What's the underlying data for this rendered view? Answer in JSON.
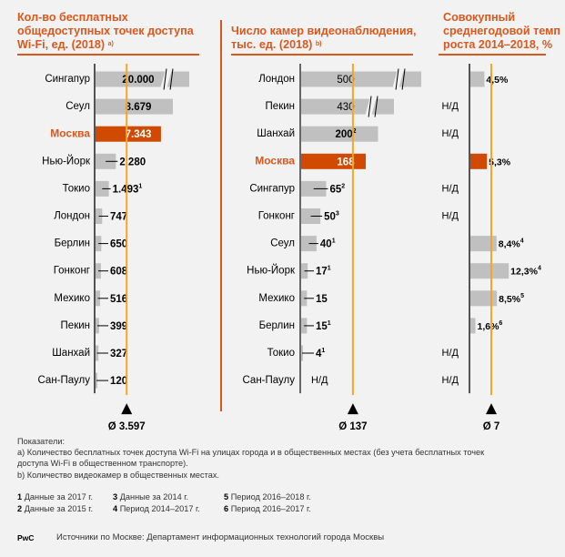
{
  "colors": {
    "accent": "#d9581e",
    "moscow_bar": "#d04a02",
    "bar": "#c0c0c0",
    "avg_line": "#f5a623",
    "axis": "#000000"
  },
  "chart_data": [
    {
      "type": "bar",
      "orientation": "horizontal",
      "title": "Кол-во бесплатных общедоступных точек доступа Wi-Fi, ед. (2018)",
      "title_lines": [
        "Кол-во бесплатных",
        "общедоступных точек доступа",
        "Wi-Fi, ед. (2018)"
      ],
      "title_note": "a)",
      "categories": [
        "Сингапур",
        "Сеул",
        "Москва",
        "Нью-Йорк",
        "Токио",
        "Лондон",
        "Берлин",
        "Гонконг",
        "Мехико",
        "Пекин",
        "Шанхай",
        "Сан-Паулу"
      ],
      "values": [
        20000,
        8679,
        7343,
        2280,
        1493,
        747,
        650,
        608,
        516,
        399,
        327,
        120
      ],
      "labels": [
        "20.000",
        "8.679",
        "7.343",
        "2.280",
        "1.493",
        "747",
        "650",
        "608",
        "516",
        "399",
        "327",
        "120"
      ],
      "footnotes": [
        "",
        "",
        "",
        "",
        "1",
        "",
        "",
        "",
        "",
        "",
        "",
        ""
      ],
      "broken_axis": [
        true,
        false,
        false,
        false,
        false,
        false,
        false,
        false,
        false,
        false,
        false,
        false
      ],
      "highlight": "Москва",
      "average": 3597,
      "average_label": "Ø 3.597"
    },
    {
      "type": "bar",
      "orientation": "horizontal",
      "title": "Число камер видеонаблюдения, тыс. ед. (2018)",
      "title_lines": [
        "Число камер видеонаблюдения,",
        "тыс. ед. (2018)"
      ],
      "title_note": "b)",
      "categories": [
        "Лондон",
        "Пекин",
        "Шанхай",
        "Москва",
        "Сингапур",
        "Гонконг",
        "Сеул",
        "Нью-Йорк",
        "Мехико",
        "Берлин",
        "Токио",
        "Сан-Паулу"
      ],
      "values": [
        500,
        430,
        200,
        168,
        65,
        50,
        40,
        17,
        15,
        15,
        4,
        null
      ],
      "labels": [
        "500",
        "430",
        "200",
        "168",
        "65",
        "50",
        "40",
        "17",
        "15",
        "15",
        "4",
        "Н/Д"
      ],
      "footnotes": [
        "",
        "",
        "2",
        "",
        "2",
        "3",
        "1",
        "1",
        "",
        "1",
        "1",
        ""
      ],
      "broken_axis": [
        true,
        true,
        false,
        false,
        false,
        false,
        false,
        false,
        false,
        false,
        false,
        false
      ],
      "highlight": "Москва",
      "average": 137,
      "average_label": "Ø 137"
    },
    {
      "type": "bar",
      "orientation": "horizontal",
      "title": "Совокупный среднегодовой темп роста 2014–2018, %",
      "title_lines": [
        "Совокупный",
        "среднегодовой темп",
        "роста 2014–2018, %"
      ],
      "categories": [
        "Лондон",
        "Пекин",
        "Шанхай",
        "Москва",
        "Сингапур",
        "Гонконг",
        "Сеул",
        "Нью-Йорк",
        "Мехико",
        "Берлин",
        "Токио",
        "Сан-Паулу"
      ],
      "values": [
        4.5,
        null,
        null,
        5.3,
        null,
        null,
        8.4,
        12.3,
        8.5,
        1.6,
        null,
        null
      ],
      "labels": [
        "4,5%",
        "Н/Д",
        "Н/Д",
        "5,3%",
        "Н/Д",
        "Н/Д",
        "8,4%",
        "12,3%",
        "8,5%",
        "1,6%",
        "Н/Д",
        "Н/Д"
      ],
      "footnotes": [
        "",
        "",
        "",
        "",
        "",
        "",
        "4",
        "4",
        "5",
        "6",
        "",
        ""
      ],
      "highlight": "Москва",
      "average": 7,
      "average_label": "Ø 7"
    }
  ],
  "notes": {
    "heading": "Показатели:",
    "a_line1": "a) Количество бесплатных точек доступа Wi-Fi на улицах города и в общественных местах (без учета бесплатных точек",
    "a_line2": "доступа Wi-Fi в общественном транспорте).",
    "b": "b) Количество видеокамер в общественных местах."
  },
  "footnotes": [
    {
      "num": "1",
      "text": "Данные за 2017 г."
    },
    {
      "num": "2",
      "text": "Данные за 2015 г."
    },
    {
      "num": "3",
      "text": "Данные за 2014 г."
    },
    {
      "num": "4",
      "text": "Период 2014–2017 г."
    },
    {
      "num": "5",
      "text": "Период 2016–2018 г."
    },
    {
      "num": "6",
      "text": "Период 2016–2017 г."
    }
  ],
  "footer": {
    "brand": "PwC",
    "source": "Источники по Москве: Департамент информационных технологий города Москвы"
  }
}
